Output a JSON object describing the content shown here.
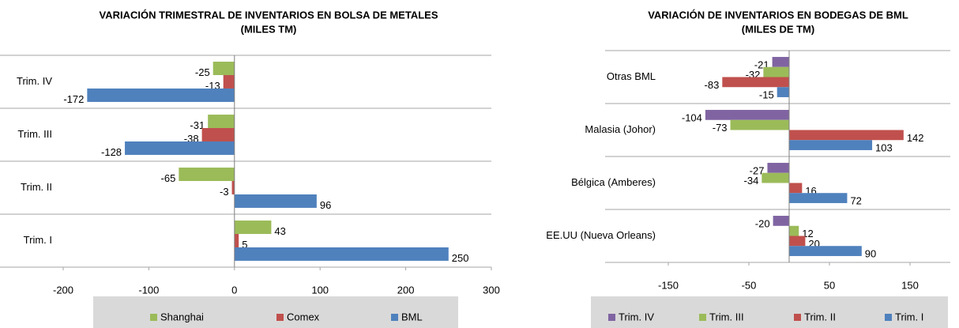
{
  "chart_data": [
    {
      "type": "bar",
      "orientation": "horizontal",
      "title": "VARIACIÓN TRIMESTRAL DE INVENTARIOS EN BOLSA DE METALES",
      "subtitle": "(MILES TM)",
      "categories": [
        "Trim. I",
        "Trim. II",
        "Trim. III",
        "Trim. IV"
      ],
      "series": [
        {
          "name": "Shanghai",
          "color": "#9bbb59",
          "values": [
            43,
            -65,
            -31,
            -25
          ]
        },
        {
          "name": "Comex",
          "color": "#c0504d",
          "values": [
            5,
            -3,
            -38,
            -13
          ]
        },
        {
          "name": "BML",
          "color": "#4f81bd",
          "values": [
            250,
            96,
            -128,
            -172
          ]
        }
      ],
      "xlim": [
        -200,
        300
      ],
      "xticks": [
        -200,
        -100,
        0,
        100,
        200,
        300
      ]
    },
    {
      "type": "bar",
      "orientation": "horizontal",
      "title": "VARIACIÓN DE INVENTARIOS EN BODEGAS DE BML",
      "subtitle": "(MILES DE TM)",
      "categories": [
        "EE.UU  (Nueva Orleans)",
        "Bélgica (Amberes)",
        "Malasia (Johor)",
        "Otras BML"
      ],
      "series": [
        {
          "name": "Trim. IV",
          "color": "#8064a2",
          "values": [
            -20,
            -27,
            -104,
            -21
          ]
        },
        {
          "name": "Trim. III",
          "color": "#9bbb59",
          "values": [
            12,
            -34,
            -73,
            -32
          ]
        },
        {
          "name": "Trim. II",
          "color": "#c0504d",
          "values": [
            20,
            16,
            142,
            -83
          ]
        },
        {
          "name": "Trim. I",
          "color": "#4f81bd",
          "values": [
            90,
            72,
            103,
            -15
          ]
        }
      ],
      "xlim": [
        -150,
        200
      ],
      "xticks": [
        -150,
        -50,
        50,
        150
      ]
    }
  ]
}
